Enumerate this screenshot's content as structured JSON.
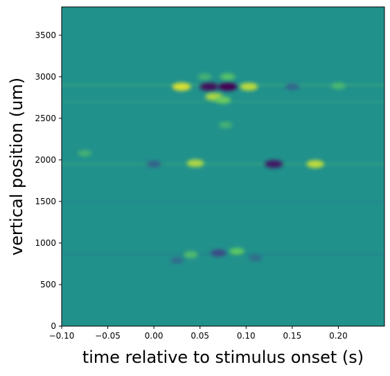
{
  "chart_data": {
    "type": "heatmap",
    "title": "",
    "xlabel": "time relative to stimulus onset (s)",
    "ylabel": "vertical position (um)",
    "xlim": [
      -0.1,
      0.25
    ],
    "ylim": [
      0,
      3840
    ],
    "x_ticks": [
      -0.1,
      -0.05,
      0.0,
      0.05,
      0.1,
      0.15,
      0.2
    ],
    "x_tick_labels": [
      "−0.10",
      "−0.05",
      "0.00",
      "0.05",
      "0.10",
      "0.15",
      "0.20"
    ],
    "y_ticks": [
      0,
      500,
      1000,
      1500,
      2000,
      2500,
      3000,
      3500
    ],
    "y_tick_labels": [
      "0",
      "500",
      "1000",
      "1500",
      "2000",
      "2500",
      "3000",
      "3500"
    ],
    "colormap": "viridis",
    "value_range": [
      -1,
      1
    ],
    "background_value": 0,
    "grid": false,
    "features": [
      {
        "kind": "band",
        "y": 2900,
        "t0": -0.1,
        "t1": 0.25,
        "value": 0.1
      },
      {
        "kind": "band",
        "y": 1950,
        "t0": -0.1,
        "t1": 0.25,
        "value": 0.08
      },
      {
        "kind": "band",
        "y": 2700,
        "t0": -0.1,
        "t1": 0.25,
        "value": 0.06
      },
      {
        "kind": "band",
        "y": 1500,
        "t0": -0.1,
        "t1": 0.25,
        "value": -0.05
      },
      {
        "kind": "band",
        "y": 870,
        "t0": -0.1,
        "t1": 0.25,
        "value": -0.06
      },
      {
        "kind": "blob",
        "t": 0.03,
        "y": 2880,
        "value": 0.9
      },
      {
        "kind": "blob",
        "t": 0.06,
        "y": 2880,
        "value": -0.95
      },
      {
        "kind": "blob",
        "t": 0.08,
        "y": 2880,
        "value": -1.0
      },
      {
        "kind": "blob",
        "t": 0.103,
        "y": 2880,
        "value": 0.8
      },
      {
        "kind": "blob",
        "t": 0.08,
        "y": 3000,
        "value": 0.45
      },
      {
        "kind": "blob",
        "t": 0.055,
        "y": 3000,
        "value": 0.3
      },
      {
        "kind": "blob",
        "t": 0.065,
        "y": 2760,
        "value": 0.75
      },
      {
        "kind": "blob",
        "t": 0.075,
        "y": 2720,
        "value": 0.55
      },
      {
        "kind": "blob",
        "t": 0.078,
        "y": 2420,
        "value": 0.3
      },
      {
        "kind": "blob",
        "t": 0.15,
        "y": 2880,
        "value": -0.35
      },
      {
        "kind": "blob",
        "t": 0.2,
        "y": 2890,
        "value": 0.35
      },
      {
        "kind": "blob",
        "t": 0.045,
        "y": 1960,
        "value": 0.75
      },
      {
        "kind": "blob",
        "t": 0.13,
        "y": 1950,
        "value": -0.85
      },
      {
        "kind": "blob",
        "t": 0.175,
        "y": 1950,
        "value": 0.8
      },
      {
        "kind": "blob",
        "t": -0.075,
        "y": 2080,
        "value": 0.3
      },
      {
        "kind": "blob",
        "t": 0.0,
        "y": 1950,
        "value": -0.4
      },
      {
        "kind": "blob",
        "t": 0.07,
        "y": 880,
        "value": -0.55
      },
      {
        "kind": "blob",
        "t": 0.09,
        "y": 900,
        "value": 0.5
      },
      {
        "kind": "blob",
        "t": 0.04,
        "y": 860,
        "value": 0.4
      },
      {
        "kind": "blob",
        "t": 0.11,
        "y": 820,
        "value": -0.3
      },
      {
        "kind": "blob",
        "t": 0.025,
        "y": 790,
        "value": -0.3
      }
    ]
  }
}
